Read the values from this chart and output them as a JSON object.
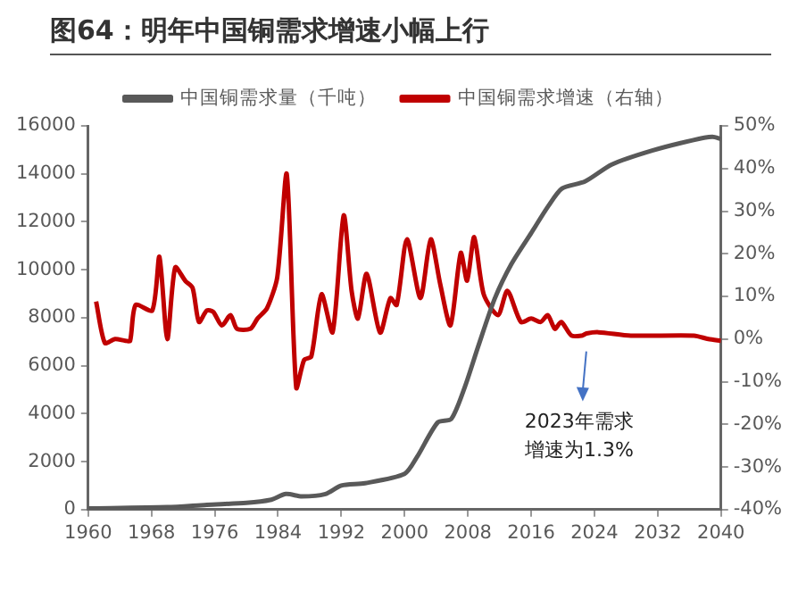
{
  "chart_data": {
    "type": "line",
    "title": "图64：明年中国铜需求增速小幅上行",
    "xlim": [
      1960,
      2040
    ],
    "xticks": [
      1960,
      1968,
      1976,
      1984,
      1992,
      2000,
      2008,
      2016,
      2024,
      2032,
      2040
    ],
    "ylim": [
      0,
      16000
    ],
    "yticks": [
      0,
      2000,
      4000,
      6000,
      8000,
      10000,
      12000,
      14000,
      16000
    ],
    "y2lim": [
      -40,
      50
    ],
    "y2ticks": [
      {
        "value": -40,
        "label": "-40%"
      },
      {
        "value": -30,
        "label": "-30%"
      },
      {
        "value": -20,
        "label": "-20%"
      },
      {
        "value": -10,
        "label": "-10%"
      },
      {
        "value": 0,
        "label": "0%"
      },
      {
        "value": 10,
        "label": "10%"
      },
      {
        "value": 20,
        "label": "20%"
      },
      {
        "value": 30,
        "label": "30%"
      },
      {
        "value": 40,
        "label": "40%"
      },
      {
        "value": 50,
        "label": "50%"
      }
    ],
    "series": [
      {
        "name": "中国铜需求量（千吨）",
        "color": "#595959",
        "x": [
          1960,
          1970,
          1975,
          1980,
          1983,
          1985,
          1987,
          1990,
          1992,
          1995,
          2000,
          2001.6,
          2004.2,
          2005.9,
          2007.6,
          2009.3,
          2011.4,
          2013.5,
          2016,
          2018.2,
          2019.9,
          2022.8,
          2026.2,
          2031.3,
          2036.4,
          2038.9,
          2040
        ],
        "values": [
          50,
          100,
          200,
          280,
          400,
          650,
          550,
          650,
          1000,
          1100,
          1490,
          2210,
          3640,
          3780,
          5100,
          6800,
          8800,
          10240,
          11530,
          12670,
          13390,
          13680,
          14390,
          14970,
          15400,
          15540,
          15450
        ]
      },
      {
        "name": "中国铜需求增速（右轴）",
        "color": "#c00000",
        "axis": "y2",
        "x": [
          1961,
          1962.1,
          1963.4,
          1964.7,
          1965.3,
          1966,
          1968.1,
          1969,
          1970,
          1971,
          1972.3,
          1973.2,
          1974,
          1975,
          1975.8,
          1976.9,
          1978,
          1978.8,
          1980.5,
          1981.4,
          1982.6,
          1983.9,
          1985.1,
          1986.3,
          1987.3,
          1988.2,
          1989.5,
          1990.9,
          1992.3,
          1993.3,
          1994.1,
          1995.2,
          1996.9,
          1998.2,
          1999,
          2000.3,
          2002,
          2003.3,
          2004.5,
          2005.8,
          2007.1,
          2007.9,
          2008.8,
          2010,
          2011.8,
          2013,
          2014.7,
          2016,
          2017.2,
          2018.1,
          2019,
          2019.8,
          2021.1,
          2022.4,
          2023,
          2024.5,
          2028.6,
          2036.6,
          2038.4,
          2040
        ],
        "values": [
          8.8,
          -0.9,
          0,
          -0.4,
          -0.4,
          8,
          6.7,
          19.3,
          0,
          16.8,
          13.6,
          12,
          4,
          6.7,
          6.4,
          3.2,
          5.6,
          2.4,
          2.4,
          4.8,
          7.2,
          14.5,
          38.7,
          -11.4,
          -4.9,
          -4.1,
          10.5,
          1.6,
          29,
          11.3,
          4.8,
          15.3,
          1.5,
          9.6,
          8,
          23.4,
          9.6,
          23.4,
          12.9,
          3.2,
          20.2,
          13.7,
          23.9,
          10.5,
          5.6,
          11.3,
          4,
          4.8,
          4,
          5.6,
          2.4,
          4,
          0.8,
          0.8,
          1.3,
          1.6,
          0.8,
          0.8,
          0,
          -0.4
        ]
      }
    ],
    "legend": "top",
    "grid": false,
    "marker": "none",
    "line_style": "solid",
    "annotations": [
      "2023年需求增速为1.3%"
    ]
  }
}
